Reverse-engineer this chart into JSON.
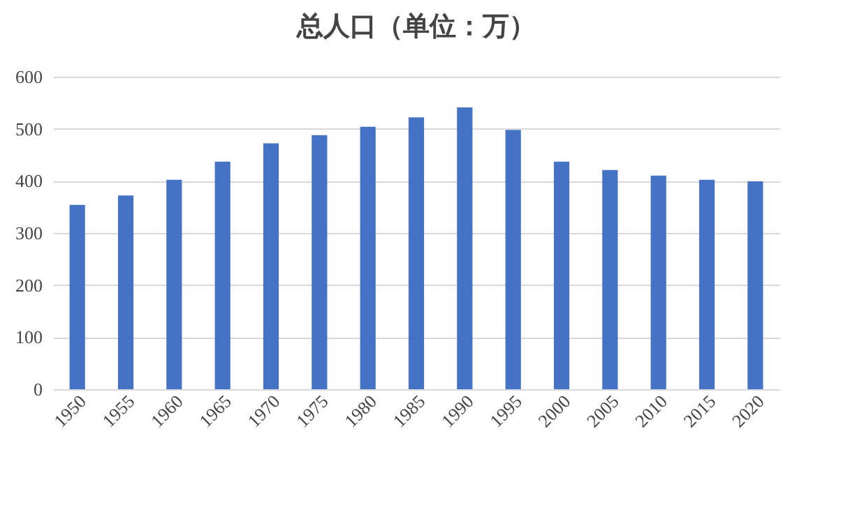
{
  "chart_data": {
    "type": "bar",
    "title": "总人口（单位：万）",
    "categories": [
      "1950",
      "1955",
      "1960",
      "1965",
      "1970",
      "1975",
      "1980",
      "1985",
      "1990",
      "1995",
      "2000",
      "2005",
      "2010",
      "2015",
      "2020"
    ],
    "values": [
      354,
      372,
      402,
      437,
      472,
      488,
      504,
      522,
      541,
      498,
      437,
      421,
      410,
      402,
      399
    ],
    "color": "#4472c4",
    "ylim": [
      0,
      600
    ],
    "yticks": [
      0,
      100,
      200,
      300,
      400,
      500,
      600
    ],
    "grid": "y"
  }
}
